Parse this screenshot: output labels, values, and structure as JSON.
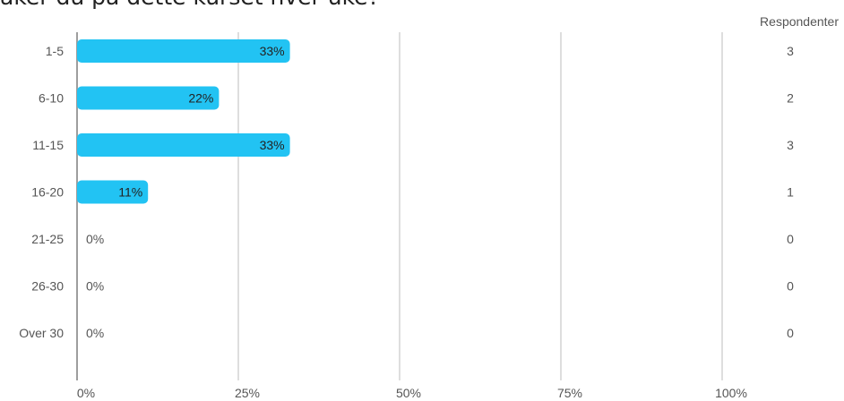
{
  "title": "aker du på dette kurset hver uke?",
  "colors": {
    "bar": "#22c3f3",
    "grid": "#bdbdbd",
    "axis": "#9e9e9e",
    "text": "#555555",
    "bar_label": "#222222"
  },
  "chart_data": {
    "type": "bar",
    "orientation": "horizontal",
    "title": "aker du på dette kurset hver uke?",
    "categories": [
      "1-5",
      "6-10",
      "11-15",
      "16-20",
      "21-25",
      "26-30",
      "Over 30"
    ],
    "values": [
      33,
      22,
      33,
      11,
      0,
      0,
      0
    ],
    "value_labels": [
      "33%",
      "22%",
      "33%",
      "11%",
      "0%",
      "0%",
      "0%"
    ],
    "respondents_label": "Respondenter",
    "respondents": [
      3,
      2,
      3,
      1,
      0,
      0,
      0
    ],
    "x_ticks": [
      "0%",
      "25%",
      "50%",
      "75%",
      "100%"
    ],
    "xlim": [
      0,
      100
    ],
    "grid": true
  }
}
